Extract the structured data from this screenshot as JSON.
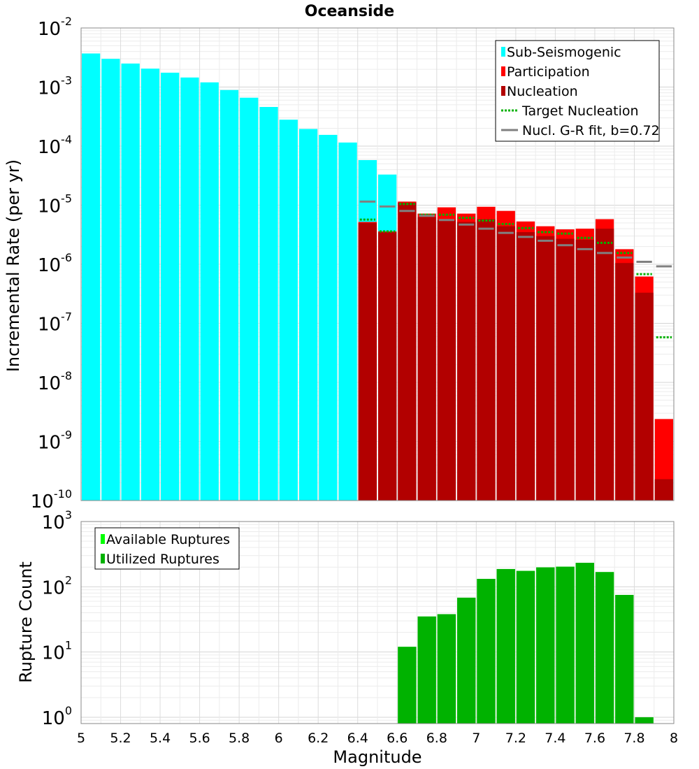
{
  "title": "Oceanside",
  "colors": {
    "sub_seismogenic": "#00FFFF",
    "participation": "#FF0000",
    "nucleation": "#B20000",
    "target_nucleation": "#00B200",
    "gr_fit": "#808080",
    "available_ruptures": "#00FF00",
    "utilized_ruptures": "#00B200"
  },
  "chart_data": [
    {
      "type": "bar",
      "title": "Oceanside",
      "xlabel": "Magnitude",
      "ylabel": "Incremental Rate (per yr)",
      "xlim": [
        5,
        8
      ],
      "ylim": [
        1e-10,
        0.01
      ],
      "yscale": "log",
      "grid": true,
      "legend_position": "top-right",
      "bin_width": 0.1,
      "y_tick_labels": [
        {
          "base": "10",
          "exp": "-2"
        },
        {
          "base": "10",
          "exp": "-3"
        },
        {
          "base": "10",
          "exp": "-4"
        },
        {
          "base": "10",
          "exp": "-5"
        },
        {
          "base": "10",
          "exp": "-6"
        },
        {
          "base": "10",
          "exp": "-7"
        },
        {
          "base": "10",
          "exp": "-8"
        },
        {
          "base": "10",
          "exp": "-9"
        },
        {
          "base": "10",
          "exp": "-10"
        }
      ],
      "series": [
        {
          "name": "Sub-Seismogenic",
          "kind": "bar",
          "x": [
            5.05,
            5.15,
            5.25,
            5.35,
            5.45,
            5.55,
            5.65,
            5.75,
            5.85,
            5.95,
            6.05,
            6.15,
            6.25,
            6.35,
            6.45,
            6.55
          ],
          "values": [
            0.0037,
            0.003,
            0.0025,
            0.00205,
            0.00175,
            0.00145,
            0.0012,
            0.00089,
            0.00066,
            0.00046,
            0.00028,
            0.000195,
            0.000155,
            0.000115,
            5.8e-05,
            3.3e-05
          ]
        },
        {
          "name": "Participation",
          "kind": "bar",
          "x": [
            6.45,
            6.55,
            6.65,
            6.75,
            6.85,
            6.95,
            7.05,
            7.15,
            7.25,
            7.35,
            7.45,
            7.55,
            7.65,
            7.75,
            7.85,
            7.95
          ],
          "values": [
            5.2e-06,
            3.6e-06,
            1.15e-05,
            7.2e-06,
            9.2e-06,
            7.2e-06,
            9.4e-06,
            8e-06,
            5.3e-06,
            4.4e-06,
            3.9e-06,
            4e-06,
            5.8e-06,
            1.8e-06,
            6.2e-07,
            2.4e-09
          ]
        },
        {
          "name": "Nucleation",
          "kind": "bar",
          "x": [
            6.45,
            6.55,
            6.65,
            6.75,
            6.85,
            6.95,
            7.05,
            7.15,
            7.25,
            7.35,
            7.45,
            7.55,
            7.65,
            7.75,
            7.85,
            7.95
          ],
          "values": [
            5e-06,
            3.5e-06,
            1.1e-05,
            6.3e-06,
            5.6e-06,
            5.2e-06,
            5.8e-06,
            4.4e-06,
            3.5e-06,
            3e-06,
            2.7e-06,
            2.6e-06,
            4e-06,
            1.05e-06,
            3.3e-07,
            2.3e-10
          ]
        },
        {
          "name": "Target Nucleation",
          "kind": "step-dotted",
          "x": [
            6.45,
            6.55,
            6.65,
            6.75,
            6.85,
            6.95,
            7.05,
            7.15,
            7.25,
            7.35,
            7.45,
            7.55,
            7.65,
            7.75,
            7.85,
            7.95
          ],
          "values": [
            5.7e-06,
            3.6e-06,
            1.05e-05,
            6.9e-06,
            6.9e-06,
            6.1e-06,
            5.5e-06,
            4.8e-06,
            4.1e-06,
            3.5e-06,
            3.3e-06,
            2.8e-06,
            2.3e-06,
            1.55e-06,
            6.8e-07,
            5.8e-08
          ]
        },
        {
          "name": "Nucl. G-R fit, b=0.72",
          "kind": "step",
          "x": [
            6.45,
            6.55,
            6.65,
            6.75,
            6.85,
            6.95,
            7.05,
            7.15,
            7.25,
            7.35,
            7.45,
            7.55,
            7.65,
            7.75,
            7.85,
            7.95
          ],
          "values": [
            1.15e-05,
            9.5e-06,
            8e-06,
            6.6e-06,
            5.6e-06,
            4.7e-06,
            4e-06,
            3.4e-06,
            2.9e-06,
            2.5e-06,
            2.1e-06,
            1.8e-06,
            1.55e-06,
            1.3e-06,
            1.1e-06,
            9.2e-07
          ]
        }
      ]
    },
    {
      "type": "bar",
      "xlabel": "Magnitude",
      "ylabel": "Rupture Count",
      "xlim": [
        5,
        8
      ],
      "ylim": [
        0.8,
        1000
      ],
      "yscale": "log",
      "grid": true,
      "legend_position": "top-left",
      "bin_width": 0.1,
      "x_tick_labels": [
        "5",
        "5.2",
        "5.4",
        "5.6",
        "5.8",
        "6",
        "6.2",
        "6.4",
        "6.6",
        "6.8",
        "7",
        "7.2",
        "7.4",
        "7.6",
        "7.8",
        "8"
      ],
      "y_tick_labels": [
        {
          "base": "10",
          "exp": "3"
        },
        {
          "base": "10",
          "exp": "2"
        },
        {
          "base": "10",
          "exp": "1"
        },
        {
          "base": "10",
          "exp": "0"
        }
      ],
      "series": [
        {
          "name": "Available Ruptures",
          "kind": "bar",
          "x": [
            6.65,
            6.75,
            6.85,
            6.95,
            7.05,
            7.15,
            7.25,
            7.35,
            7.45,
            7.55,
            7.65,
            7.75,
            7.85
          ],
          "values": [
            12,
            35,
            38,
            68,
            132,
            187,
            175,
            198,
            203,
            233,
            168,
            75,
            1
          ]
        },
        {
          "name": "Utilized Ruptures",
          "kind": "bar",
          "x": [
            6.65,
            6.75,
            6.85,
            6.95,
            7.05,
            7.15,
            7.25,
            7.35,
            7.45,
            7.55,
            7.65,
            7.75,
            7.85
          ],
          "values": [
            12,
            35,
            38,
            68,
            132,
            187,
            175,
            198,
            203,
            233,
            168,
            75,
            1
          ]
        }
      ]
    }
  ]
}
